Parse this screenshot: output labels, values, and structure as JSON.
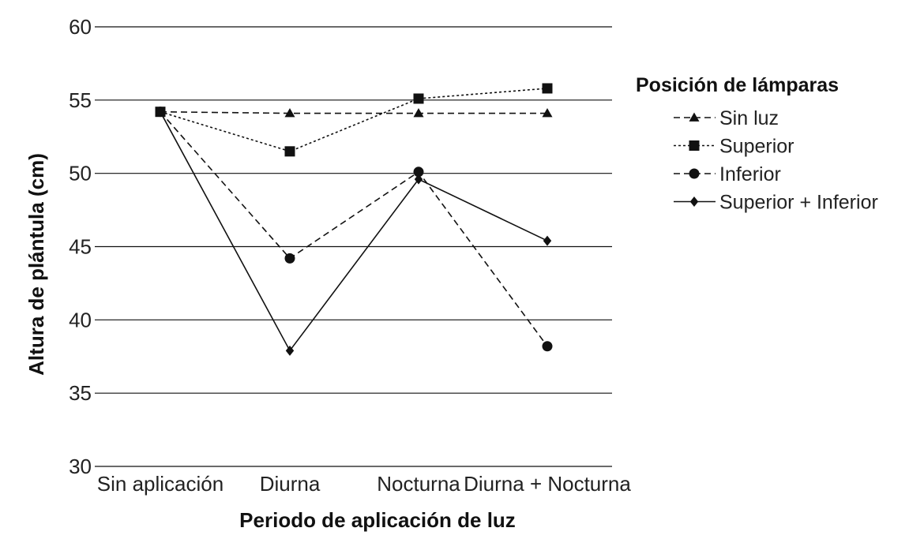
{
  "chart_data": {
    "type": "line",
    "title": "",
    "xlabel": "Periodo de aplicación de luz",
    "ylabel": "Altura de plántula (cm)",
    "categories": [
      "Sin aplicación",
      "Diurna",
      "Nocturna",
      "Diurna + Nocturna"
    ],
    "ylim": [
      30,
      60
    ],
    "yticks": [
      30,
      35,
      40,
      45,
      50,
      55,
      60
    ],
    "grid": "horizontal",
    "legend": {
      "title": "Posición de lámparas",
      "placement": "right"
    },
    "series": [
      {
        "name": "Sin luz",
        "marker": "triangle",
        "line": "dashed",
        "values": [
          54.2,
          54.1,
          54.1,
          54.1
        ]
      },
      {
        "name": "Superior",
        "marker": "square",
        "line": "dotted",
        "values": [
          54.2,
          51.5,
          55.1,
          55.8
        ]
      },
      {
        "name": "Inferior",
        "marker": "circle",
        "line": "dashed",
        "values": [
          54.2,
          44.2,
          50.1,
          38.2
        ]
      },
      {
        "name": "Superior + Inferior",
        "marker": "diamond",
        "line": "solid",
        "values": [
          54.2,
          37.9,
          49.6,
          45.4
        ]
      }
    ],
    "colors": {
      "lines": "#111111",
      "grid": "#111111",
      "text": "#222222"
    }
  }
}
